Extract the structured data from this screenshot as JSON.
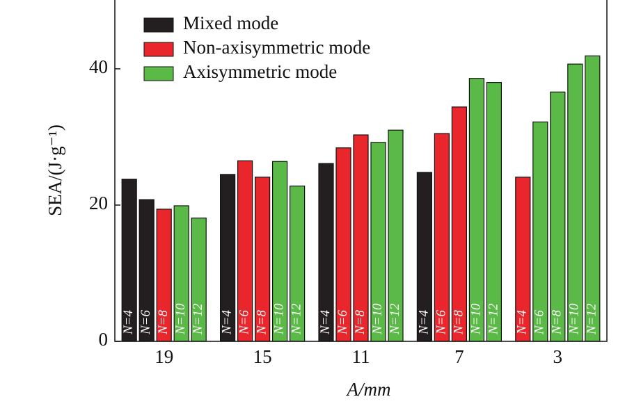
{
  "chart_data": {
    "type": "bar",
    "x_label": "A/mm",
    "y_label": "SEA/(J·g⁻¹)",
    "ylim": [
      0,
      50
    ],
    "yticks": [
      0,
      20,
      40
    ],
    "legend_position": "upper left",
    "series": [
      {
        "name": "Mixed mode",
        "color": "#231f20"
      },
      {
        "name": "Non-axisymmetric mode",
        "color": "#e8262b"
      },
      {
        "name": "Axisymmetric mode",
        "color": "#5bba47"
      }
    ],
    "groups": [
      {
        "label": "19",
        "bars": [
          {
            "label": "N=4",
            "mode": 0,
            "value": 23.8
          },
          {
            "label": "N=6",
            "mode": 0,
            "value": 20.8
          },
          {
            "label": "N=8",
            "mode": 1,
            "value": 19.4
          },
          {
            "label": "N=10",
            "mode": 2,
            "value": 19.9
          },
          {
            "label": "N=12",
            "mode": 2,
            "value": 18.1
          }
        ]
      },
      {
        "label": "15",
        "bars": [
          {
            "label": "N=4",
            "mode": 0,
            "value": 24.5
          },
          {
            "label": "N=6",
            "mode": 1,
            "value": 26.5
          },
          {
            "label": "N=8",
            "mode": 1,
            "value": 24.1
          },
          {
            "label": "N=10",
            "mode": 2,
            "value": 26.4
          },
          {
            "label": "N=12",
            "mode": 2,
            "value": 22.8
          }
        ]
      },
      {
        "label": "11",
        "bars": [
          {
            "label": "N=4",
            "mode": 0,
            "value": 26.1
          },
          {
            "label": "N=6",
            "mode": 1,
            "value": 28.4
          },
          {
            "label": "N=8",
            "mode": 1,
            "value": 30.3
          },
          {
            "label": "N=10",
            "mode": 2,
            "value": 29.2
          },
          {
            "label": "N=12",
            "mode": 2,
            "value": 31.0
          }
        ]
      },
      {
        "label": "7",
        "bars": [
          {
            "label": "N=4",
            "mode": 0,
            "value": 24.8
          },
          {
            "label": "N=6",
            "mode": 1,
            "value": 30.5
          },
          {
            "label": "N=8",
            "mode": 1,
            "value": 34.4
          },
          {
            "label": "N=10",
            "mode": 2,
            "value": 38.6
          },
          {
            "label": "N=12",
            "mode": 2,
            "value": 38.0
          }
        ]
      },
      {
        "label": "3",
        "bars": [
          {
            "label": "N=4",
            "mode": 1,
            "value": 24.1
          },
          {
            "label": "N=6",
            "mode": 2,
            "value": 32.2
          },
          {
            "label": "N=8",
            "mode": 2,
            "value": 36.6
          },
          {
            "label": "N=10",
            "mode": 2,
            "value": 40.7
          },
          {
            "label": "N=12",
            "mode": 2,
            "value": 41.9
          }
        ]
      }
    ]
  }
}
